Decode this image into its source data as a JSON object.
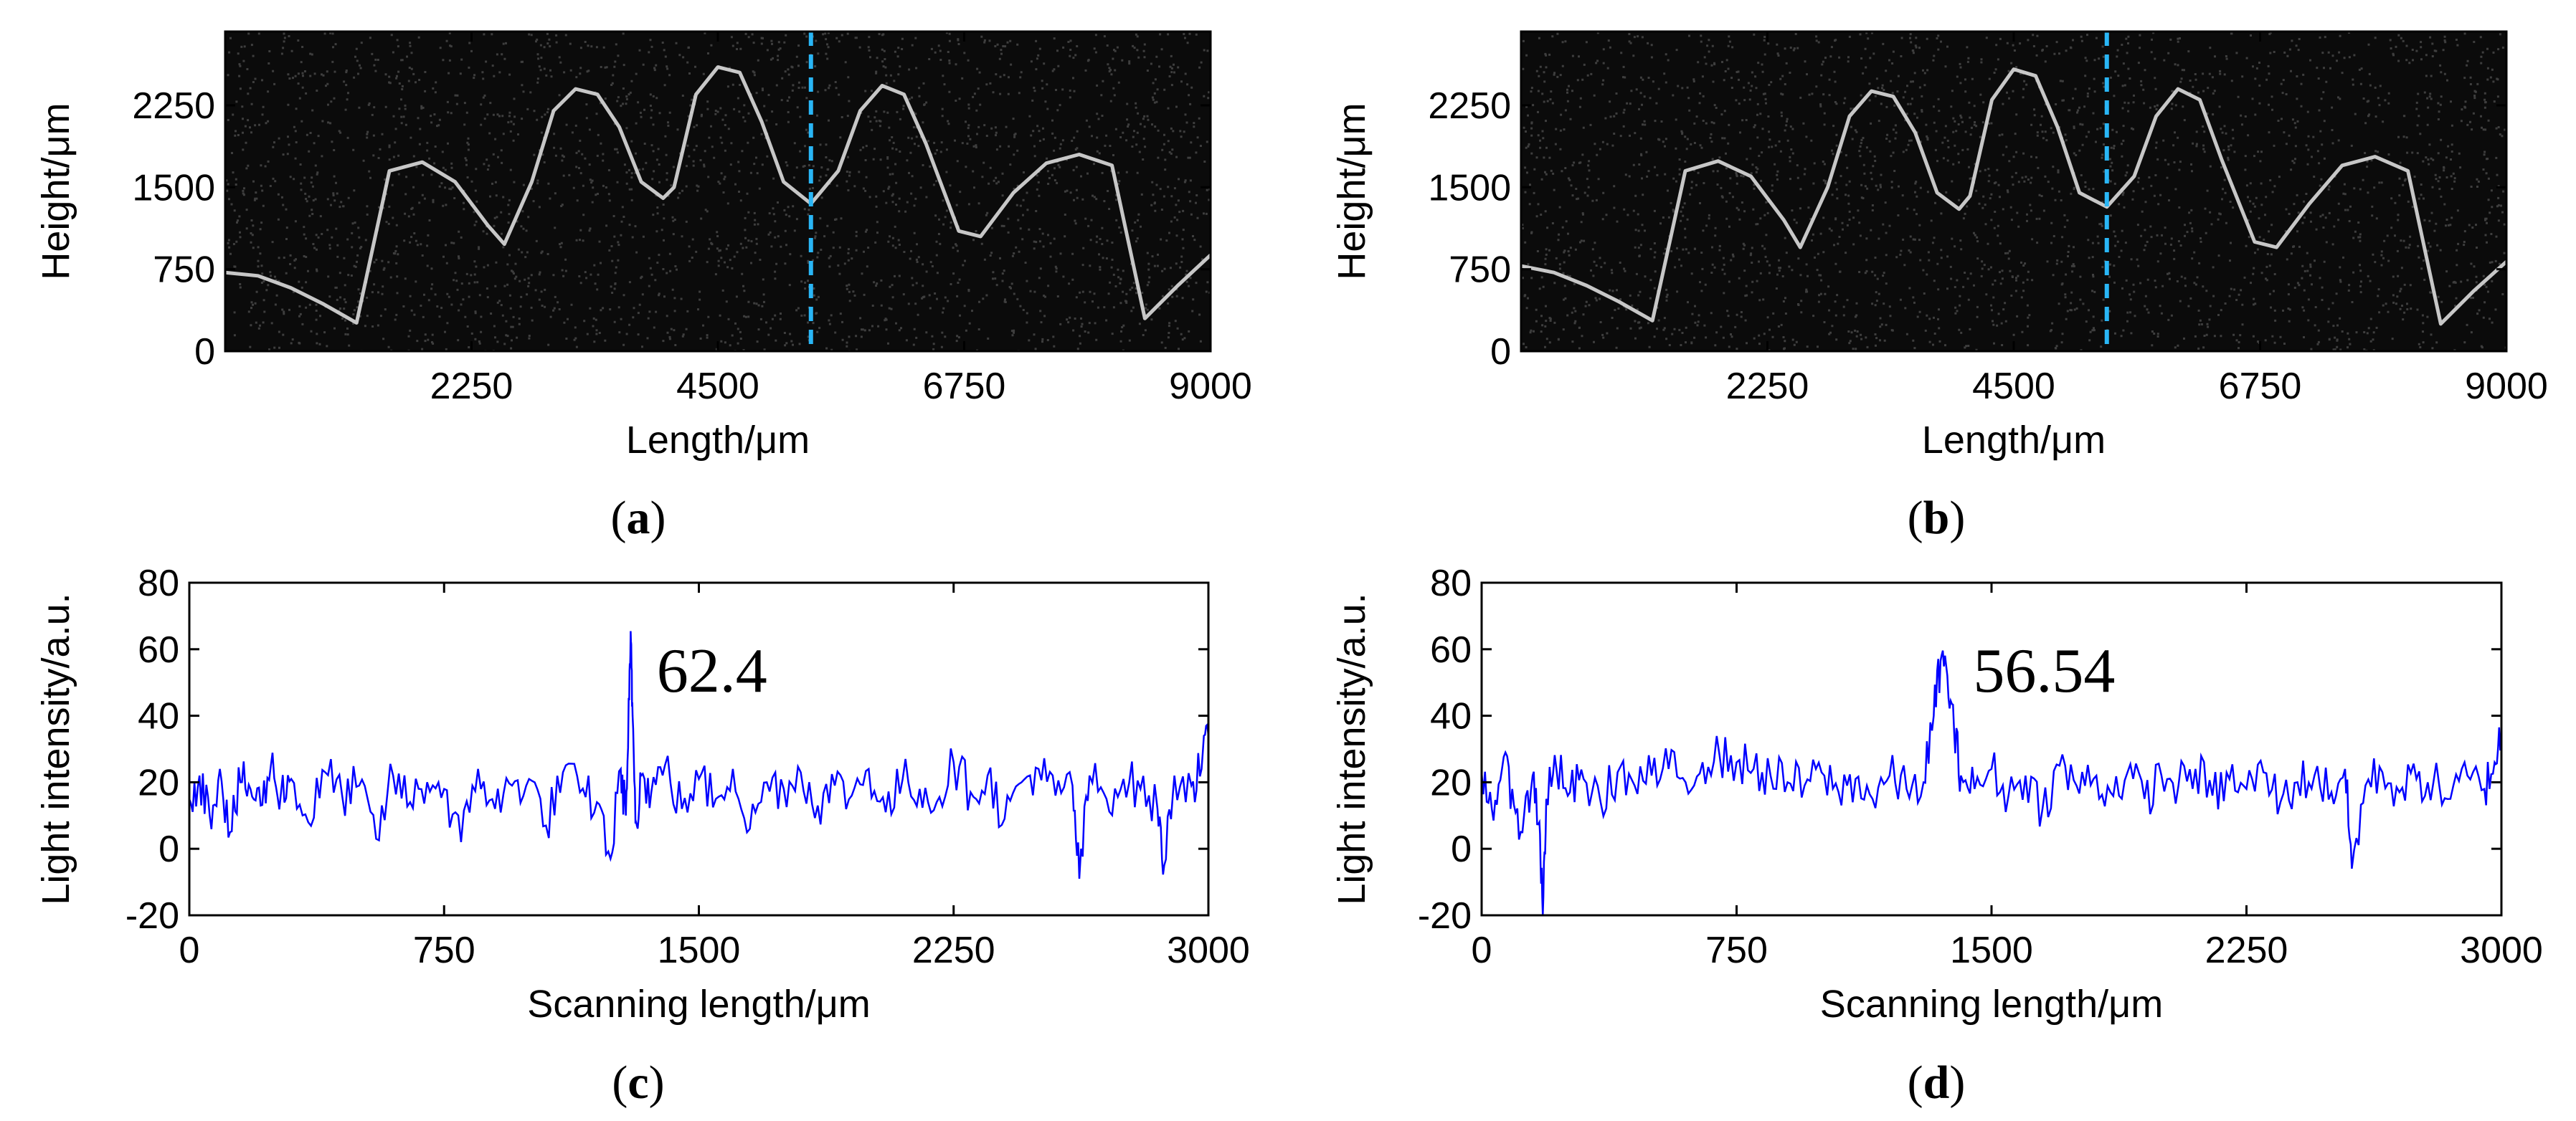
{
  "colors": {
    "trace": "#0000ff",
    "cursor": "#29b6f6",
    "oct_background": "#0b0b0b",
    "oct_signal": "#dcdcdc",
    "axis": "#000000"
  },
  "chart_data": [
    {
      "panel": "a",
      "panel_label": {
        "open": "(",
        "letter": "a",
        "close": ")"
      },
      "type": "heatmap",
      "title": "",
      "xlabel": "Length/μm",
      "ylabel": "Height/μm",
      "xlim": [
        0,
        9000
      ],
      "ylim": [
        0,
        2925
      ],
      "xticks": [
        2250,
        4500,
        6750,
        9000
      ],
      "yticks": [
        0,
        750,
        1500,
        2250
      ],
      "cursor_x": 5350,
      "surface_profile": {
        "x": [
          0,
          300,
          600,
          900,
          1200,
          1500,
          1800,
          2100,
          2400,
          2550,
          2800,
          3000,
          3200,
          3400,
          3600,
          3800,
          4000,
          4100,
          4300,
          4500,
          4700,
          4900,
          5100,
          5350,
          5600,
          5800,
          6000,
          6200,
          6400,
          6700,
          6900,
          7200,
          7500,
          7800,
          8100,
          8400,
          8700,
          9000
        ],
        "y": [
          720,
          690,
          580,
          430,
          260,
          1650,
          1730,
          1550,
          1150,
          980,
          1550,
          2200,
          2400,
          2350,
          2050,
          1550,
          1400,
          1500,
          2350,
          2600,
          2550,
          2100,
          1550,
          1350,
          1650,
          2200,
          2430,
          2350,
          1900,
          1100,
          1050,
          1450,
          1720,
          1800,
          1700,
          300,
          600,
          880
        ]
      }
    },
    {
      "panel": "b",
      "panel_label": {
        "open": "(",
        "letter": "b",
        "close": ")"
      },
      "type": "heatmap",
      "title": "",
      "xlabel": "Length/μm",
      "ylabel": "Height/μm",
      "xlim": [
        0,
        9000
      ],
      "ylim": [
        0,
        2925
      ],
      "xticks": [
        2250,
        4500,
        6750,
        9000
      ],
      "yticks": [
        0,
        750,
        1500,
        2250
      ],
      "cursor_x": 5350,
      "surface_profile": {
        "x": [
          0,
          300,
          600,
          900,
          1200,
          1500,
          1800,
          2100,
          2400,
          2550,
          2800,
          3000,
          3200,
          3400,
          3600,
          3800,
          4000,
          4100,
          4300,
          4500,
          4700,
          4900,
          5100,
          5350,
          5600,
          5800,
          6000,
          6200,
          6400,
          6700,
          6900,
          7200,
          7500,
          7800,
          8100,
          8400,
          8700,
          9000
        ],
        "y": [
          780,
          720,
          600,
          450,
          280,
          1650,
          1740,
          1600,
          1200,
          950,
          1500,
          2150,
          2380,
          2330,
          2000,
          1450,
          1300,
          1420,
          2300,
          2580,
          2520,
          2050,
          1450,
          1320,
          1600,
          2150,
          2400,
          2300,
          1750,
          1000,
          950,
          1350,
          1700,
          1780,
          1650,
          250,
          550,
          820
        ]
      }
    },
    {
      "panel": "c",
      "panel_label": {
        "open": "(",
        "letter": "c",
        "close": ")"
      },
      "type": "line",
      "title": "",
      "xlabel": "Scanning length/μm",
      "ylabel": "Light intensity/a.u.",
      "xlim": [
        0,
        3000
      ],
      "ylim": [
        -20,
        80
      ],
      "xticks": [
        0,
        750,
        1500,
        2250,
        3000
      ],
      "yticks": [
        -20,
        0,
        20,
        40,
        60,
        80
      ],
      "annotation": {
        "text": "62.4",
        "x": 1300,
        "y": 62.4
      },
      "series": [
        {
          "name": "intensity",
          "x": [
            0,
            30,
            60,
            90,
            120,
            150,
            180,
            210,
            240,
            270,
            300,
            350,
            400,
            450,
            500,
            550,
            600,
            650,
            700,
            750,
            800,
            850,
            900,
            950,
            1000,
            1050,
            1100,
            1150,
            1200,
            1240,
            1270,
            1285,
            1295,
            1300,
            1305,
            1315,
            1330,
            1360,
            1400,
            1450,
            1500,
            1550,
            1600,
            1650,
            1700,
            1750,
            1800,
            1850,
            1900,
            1950,
            2000,
            2050,
            2100,
            2150,
            2200,
            2250,
            2300,
            2350,
            2400,
            2450,
            2500,
            2550,
            2600,
            2620,
            2650,
            2700,
            2750,
            2800,
            2850,
            2870,
            2900,
            2950,
            2980,
            3000
          ],
          "y": [
            15,
            22,
            10,
            24,
            5,
            20,
            18,
            13,
            25,
            17,
            21,
            8,
            23,
            16,
            19,
            3,
            22,
            14,
            20,
            18,
            2,
            24,
            12,
            19,
            21,
            7,
            23,
            17,
            14,
            -3,
            24,
            10,
            45,
            62.4,
            40,
            8,
            22,
            17,
            25,
            12,
            21,
            15,
            24,
            6,
            20,
            18,
            23,
            13,
            19,
            16,
            24,
            11,
            21,
            18,
            14,
            26,
            17,
            22,
            9,
            20,
            24,
            16,
            19,
            -9,
            22,
            15,
            21,
            18,
            12,
            -5,
            22,
            19,
            24,
            34
          ]
        }
      ]
    },
    {
      "panel": "d",
      "panel_label": {
        "open": "(",
        "letter": "d",
        "close": ")"
      },
      "type": "line",
      "title": "",
      "xlabel": "Scanning length/μm",
      "ylabel": "Light intensity/a.u.",
      "xlim": [
        0,
        3000
      ],
      "ylim": [
        -20,
        80
      ],
      "xticks": [
        0,
        750,
        1500,
        2250,
        3000
      ],
      "yticks": [
        -20,
        0,
        20,
        40,
        60,
        80
      ],
      "annotation": {
        "text": "56.54",
        "x": 1370,
        "y": 56.54
      },
      "series": [
        {
          "name": "intensity",
          "x": [
            0,
            30,
            60,
            90,
            120,
            150,
            170,
            180,
            190,
            220,
            260,
            300,
            350,
            400,
            450,
            500,
            550,
            600,
            650,
            700,
            750,
            800,
            850,
            900,
            950,
            1000,
            1050,
            1100,
            1150,
            1200,
            1250,
            1300,
            1330,
            1350,
            1370,
            1390,
            1410,
            1450,
            1500,
            1550,
            1600,
            1650,
            1700,
            1750,
            1800,
            1850,
            1900,
            1950,
            2000,
            2050,
            2100,
            2150,
            2200,
            2250,
            2300,
            2350,
            2400,
            2450,
            2500,
            2540,
            2560,
            2600,
            2650,
            2700,
            2750,
            2800,
            2850,
            2900,
            2950,
            2980,
            3000
          ],
          "y": [
            23,
            12,
            24,
            18,
            5,
            22,
            8,
            -20,
            15,
            24,
            17,
            21,
            14,
            23,
            19,
            22,
            24,
            20,
            26,
            28,
            26,
            24,
            22,
            20,
            19,
            23,
            17,
            21,
            15,
            22,
            18,
            20,
            40,
            56.54,
            52,
            35,
            22,
            18,
            24,
            16,
            22,
            12,
            25,
            19,
            21,
            17,
            23,
            15,
            22,
            19,
            24,
            16,
            21,
            18,
            23,
            14,
            20,
            22,
            17,
            24,
            -6,
            19,
            23,
            17,
            21,
            20,
            15,
            22,
            18,
            26,
            35
          ]
        }
      ]
    }
  ]
}
